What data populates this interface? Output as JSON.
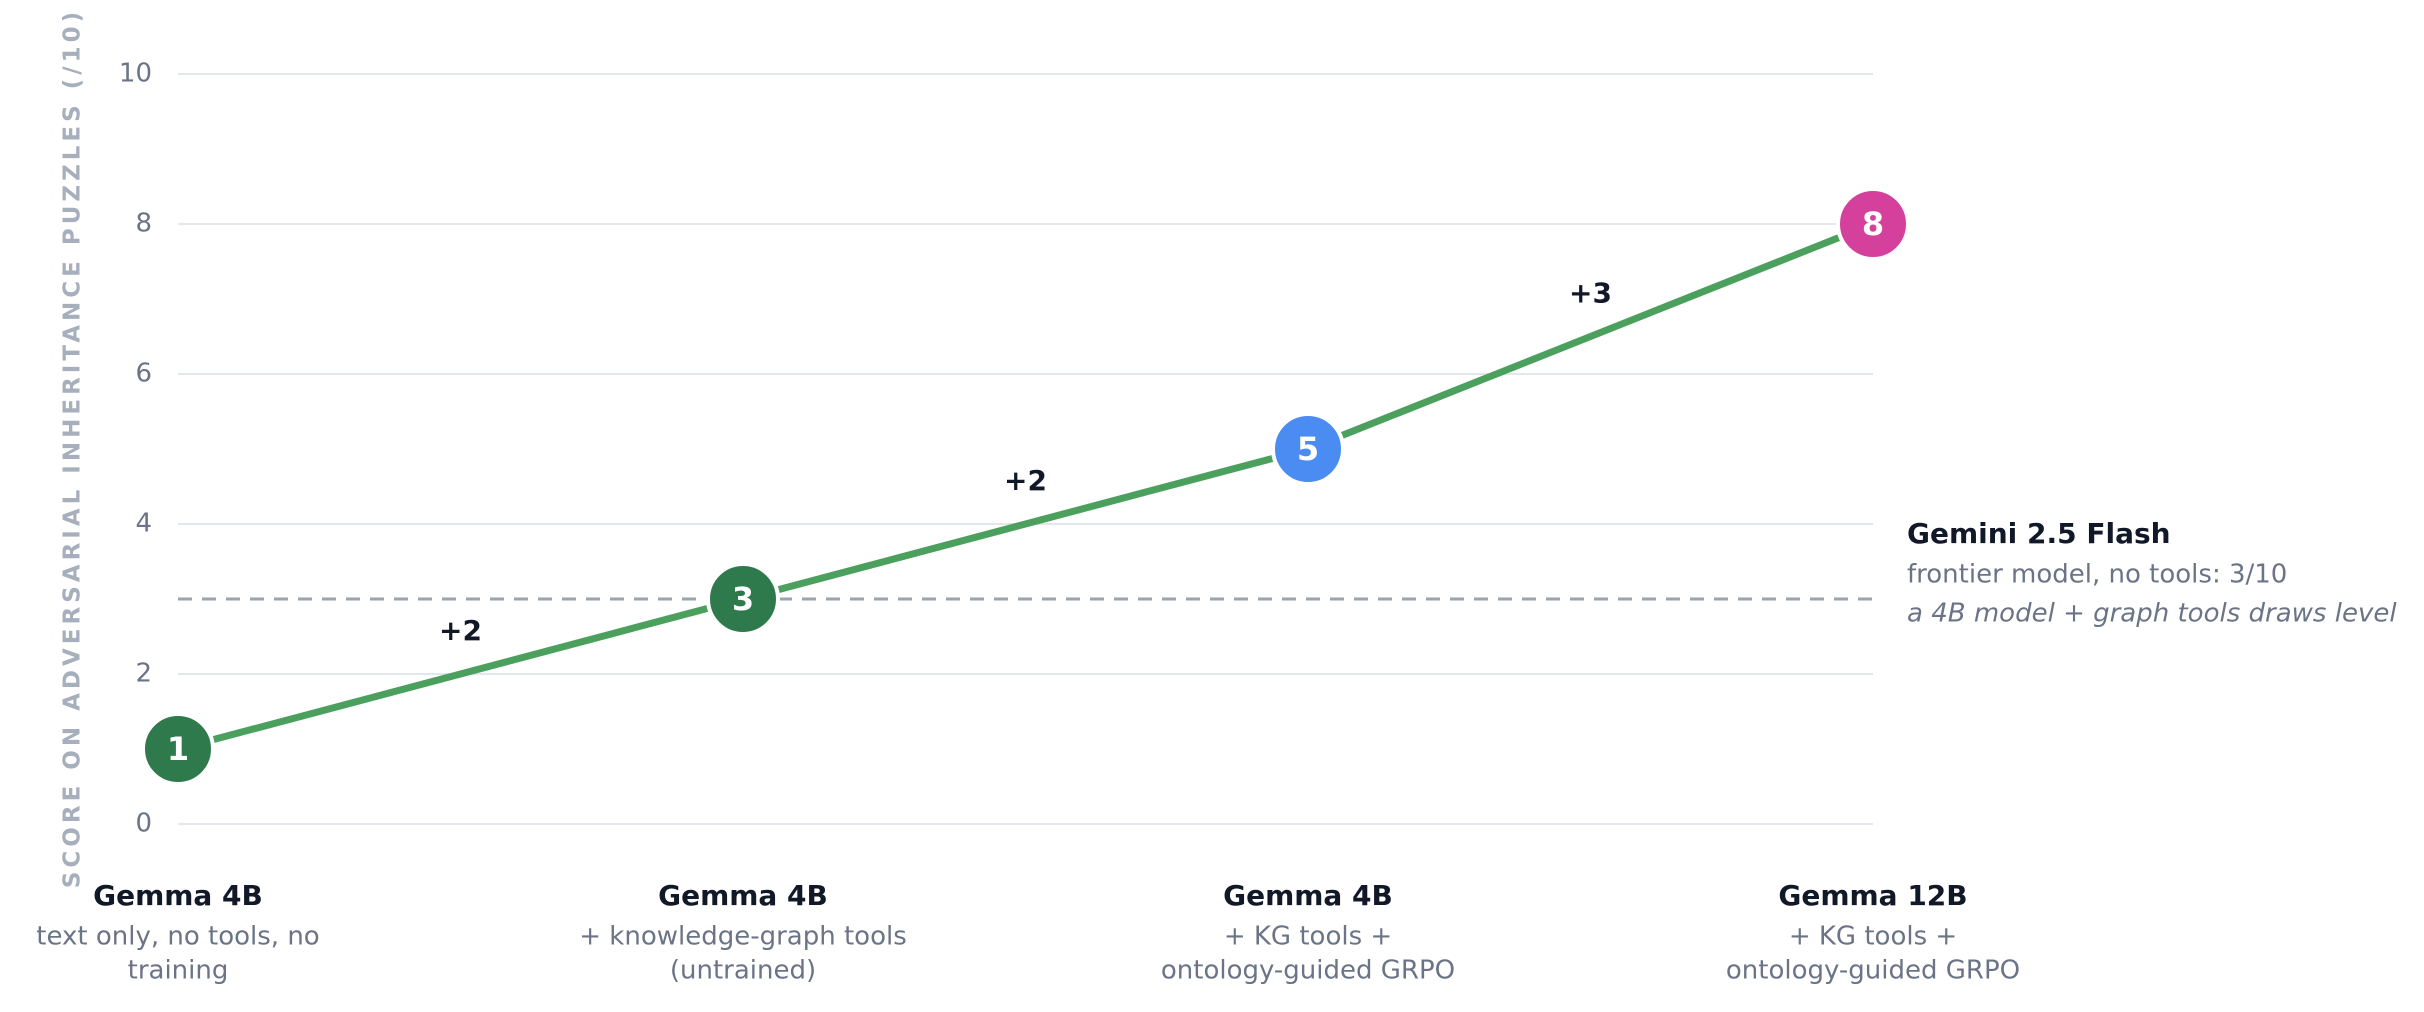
{
  "chart_data": {
    "type": "line",
    "y_axis_label": "SCORE ON ADVERSARIAL INHERITANCE PUZZLES (/10)",
    "categories": [
      "Gemma 4B",
      "Gemma 4B",
      "Gemma 4B",
      "Gemma 12B"
    ],
    "category_descriptions": [
      [
        "text only, no tools, no",
        "training"
      ],
      [
        "+ knowledge-graph tools",
        "(untrained)"
      ],
      [
        "+ KG tools +",
        "ontology-guided GRPO"
      ],
      [
        "+ KG tools +",
        "ontology-guided GRPO"
      ]
    ],
    "values": [
      1,
      3,
      5,
      8
    ],
    "point_colors": [
      "#2f7a4c",
      "#2f7a4c",
      "#4b8cf2",
      "#d4409b"
    ],
    "line_color": "#4ca05e",
    "segment_labels": [
      "+2",
      "+2",
      "+3"
    ],
    "reference_line": {
      "value": 3,
      "color": "#9aa3b2",
      "title": "Gemini 2.5 Flash",
      "note": "frontier model, no tools: 3/10",
      "note_italic": "a 4B model + graph tools draws level"
    },
    "ylim": [
      0,
      10
    ],
    "yticks": [
      0,
      2,
      4,
      6,
      8,
      10
    ],
    "grid": true
  }
}
